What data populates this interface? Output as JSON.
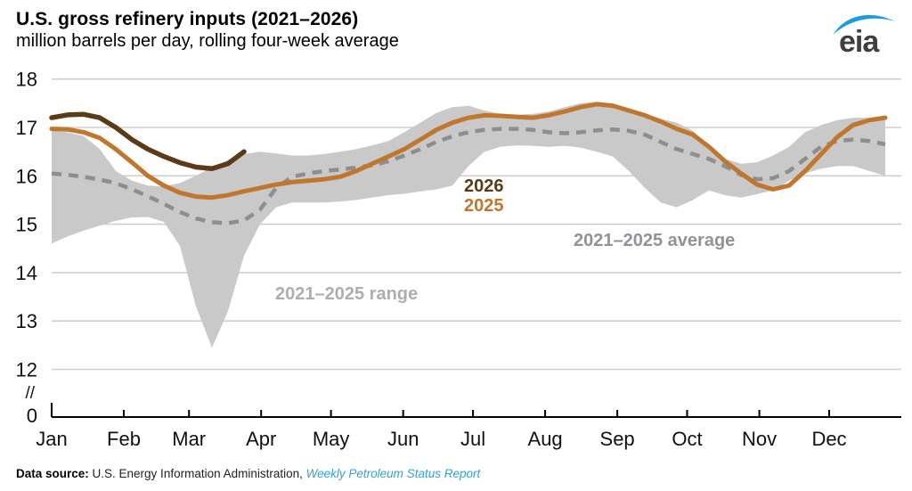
{
  "header": {
    "title": "U.S. gross refinery inputs (2021–2026)",
    "subtitle": "million barrels per day, rolling four-week average"
  },
  "logo": {
    "text": "eia",
    "swoosh_color": "#1e9cd9"
  },
  "footer": {
    "prefix": "Data source: ",
    "source": "U.S. Energy Information Administration, ",
    "report": "Weekly Petroleum Status Report"
  },
  "chart_data": {
    "type": "line",
    "title": "U.S. gross refinery inputs (2021–2026)",
    "ylabel": "million barrels per day, rolling four-week average",
    "xlabel": "",
    "months": [
      "Jan",
      "Feb",
      "Mar",
      "Apr",
      "May",
      "Jun",
      "Jul",
      "Aug",
      "Sep",
      "Oct",
      "Nov",
      "Dec"
    ],
    "y_ticks": [
      "18",
      "17",
      "16",
      "15",
      "14",
      "13",
      "12"
    ],
    "y_axis_break": "//",
    "y_zero_label": "0",
    "ylim_display": [
      12,
      18
    ],
    "grid": "horizontal",
    "x_sampling": "weekly (53 points Jan 1 – Dec 31); series 2026 ends in late March",
    "series": [
      {
        "name": "2021–2025 range",
        "type": "band",
        "color": "#c9c9c9",
        "high": [
          16.93,
          16.9,
          16.82,
          16.55,
          16.1,
          15.9,
          15.8,
          15.78,
          15.85,
          16.0,
          16.18,
          16.33,
          16.45,
          16.5,
          16.46,
          16.42,
          16.42,
          16.45,
          16.5,
          16.55,
          16.63,
          16.72,
          16.9,
          17.1,
          17.3,
          17.42,
          17.45,
          17.35,
          17.28,
          17.26,
          17.28,
          17.33,
          17.42,
          17.5,
          17.53,
          17.48,
          17.38,
          17.28,
          17.18,
          17.1,
          16.93,
          16.6,
          16.35,
          16.25,
          16.28,
          16.42,
          16.6,
          16.9,
          17.05,
          17.15,
          17.2,
          17.2,
          17.18
        ],
        "low": [
          14.6,
          14.75,
          14.87,
          14.97,
          15.07,
          15.14,
          15.15,
          15.05,
          14.55,
          13.3,
          12.45,
          13.2,
          14.35,
          15.0,
          15.35,
          15.45,
          15.45,
          15.45,
          15.47,
          15.5,
          15.55,
          15.6,
          15.63,
          15.68,
          15.72,
          15.8,
          16.2,
          16.5,
          16.6,
          16.63,
          16.62,
          16.6,
          16.62,
          16.58,
          16.5,
          16.4,
          16.1,
          15.75,
          15.45,
          15.35,
          15.5,
          15.7,
          15.6,
          15.55,
          15.62,
          15.7,
          15.9,
          16.05,
          16.15,
          16.2,
          16.2,
          16.1,
          16.0
        ]
      },
      {
        "name": "2021–2025 average",
        "type": "line",
        "style": "dashed",
        "color": "#8e8e8e",
        "values": [
          16.05,
          16.02,
          15.98,
          15.92,
          15.85,
          15.72,
          15.58,
          15.42,
          15.25,
          15.12,
          15.04,
          15.02,
          15.08,
          15.3,
          15.75,
          15.98,
          16.05,
          16.1,
          16.13,
          16.17,
          16.22,
          16.3,
          16.42,
          16.55,
          16.7,
          16.82,
          16.9,
          16.95,
          16.97,
          16.97,
          16.95,
          16.9,
          16.88,
          16.9,
          16.94,
          16.96,
          16.93,
          16.85,
          16.7,
          16.55,
          16.45,
          16.35,
          16.2,
          16.02,
          15.93,
          15.95,
          16.1,
          16.35,
          16.6,
          16.72,
          16.75,
          16.72,
          16.65
        ]
      },
      {
        "name": "2025",
        "type": "line",
        "style": "solid",
        "color": "#c0762c",
        "values": [
          16.97,
          16.96,
          16.9,
          16.78,
          16.55,
          16.28,
          16.0,
          15.8,
          15.65,
          15.57,
          15.55,
          15.6,
          15.68,
          15.75,
          15.82,
          15.87,
          15.9,
          15.93,
          15.98,
          16.1,
          16.25,
          16.4,
          16.55,
          16.75,
          16.95,
          17.1,
          17.2,
          17.25,
          17.24,
          17.22,
          17.2,
          17.25,
          17.33,
          17.42,
          17.48,
          17.45,
          17.35,
          17.25,
          17.12,
          16.97,
          16.85,
          16.6,
          16.3,
          16.05,
          15.82,
          15.72,
          15.8,
          16.1,
          16.45,
          16.8,
          17.05,
          17.15,
          17.2
        ]
      },
      {
        "name": "2026",
        "type": "line",
        "style": "solid",
        "color": "#5b3a18",
        "values": [
          17.2,
          17.26,
          17.27,
          17.2,
          17.0,
          16.75,
          16.55,
          16.4,
          16.27,
          16.18,
          16.15,
          16.25,
          16.5
        ]
      }
    ]
  }
}
